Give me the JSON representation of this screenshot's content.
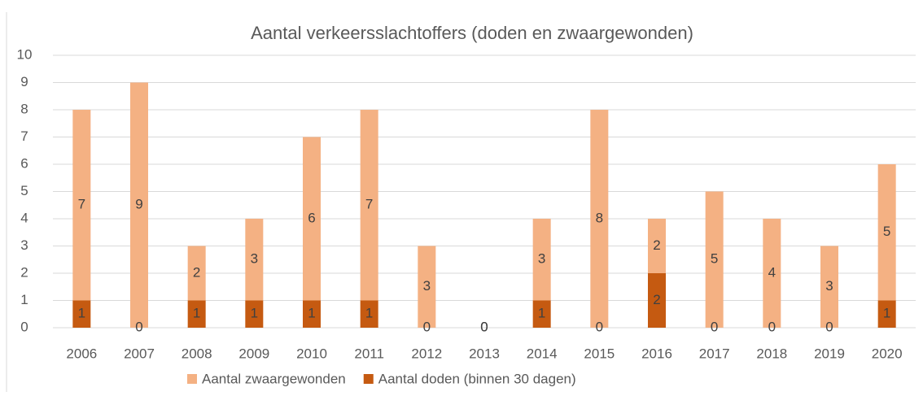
{
  "chart_data": {
    "type": "stacked_bar",
    "title": "Aantal verkeersslachtoffers (doden en zwaargewonden)",
    "categories": [
      "2006",
      "2007",
      "2008",
      "2009",
      "2010",
      "2011",
      "2012",
      "2013",
      "2014",
      "2015",
      "2016",
      "2017",
      "2018",
      "2019",
      "2020"
    ],
    "series": [
      {
        "name": "Aantal zwaargewonden",
        "color": "#f4b183",
        "values": [
          7,
          9,
          2,
          3,
          6,
          7,
          3,
          0,
          3,
          8,
          2,
          5,
          4,
          3,
          5
        ]
      },
      {
        "name": "Aantal doden (binnen 30 dagen)",
        "color": "#c55a11",
        "values": [
          1,
          0,
          1,
          1,
          1,
          1,
          0,
          0,
          1,
          0,
          2,
          0,
          0,
          0,
          1
        ]
      }
    ],
    "ylim": [
      0,
      10
    ],
    "yticks": [
      0,
      1,
      2,
      3,
      4,
      5,
      6,
      7,
      8,
      9,
      10
    ],
    "grid": true,
    "legend": "bottom"
  }
}
